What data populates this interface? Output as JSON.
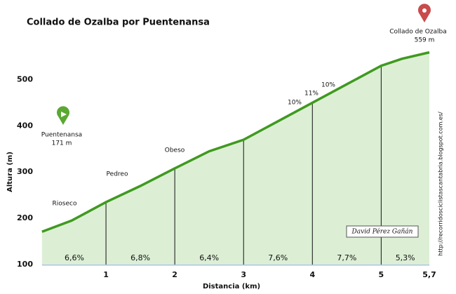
{
  "chart_data": {
    "type": "area",
    "title": "Collado de Ozalba por Puentenansa",
    "x_label": "Distancia (km)",
    "y_label": "Altura (m)",
    "x": [
      0.07,
      0.5,
      1,
      1.5,
      2,
      2.5,
      3,
      3.5,
      4,
      4.5,
      5,
      5.3,
      5.7
    ],
    "values": [
      171,
      195,
      235,
      270,
      308,
      345,
      370,
      410,
      450,
      490,
      530,
      545,
      559
    ],
    "color": "#3f9a1f",
    "fill": "#dcefd5",
    "xlim": [
      0,
      5.7
    ],
    "ylim": [
      100,
      566
    ],
    "xticks": [
      1,
      2,
      3,
      4,
      5,
      {
        "value": 5.7,
        "label": "5,7"
      }
    ],
    "yticks": [
      100,
      200,
      300,
      400,
      500
    ],
    "segment_labels": [
      "6,6%",
      "6,8%",
      "6,4%",
      "7,6%",
      "7,7%",
      "5,3%"
    ],
    "annotations": [
      "Rioseco",
      "Pedreo",
      "Obeso",
      "10%",
      "11%",
      "10%"
    ],
    "start_label": {
      "name": "Puentenansa",
      "elevation": "171 m"
    },
    "end_label": {
      "name": "Collado de Ozalba",
      "elevation": "559 m"
    },
    "signature": "David Pérez Gañán",
    "website": "http://recorridosciclistascantabria.blogspot.com.es/"
  }
}
